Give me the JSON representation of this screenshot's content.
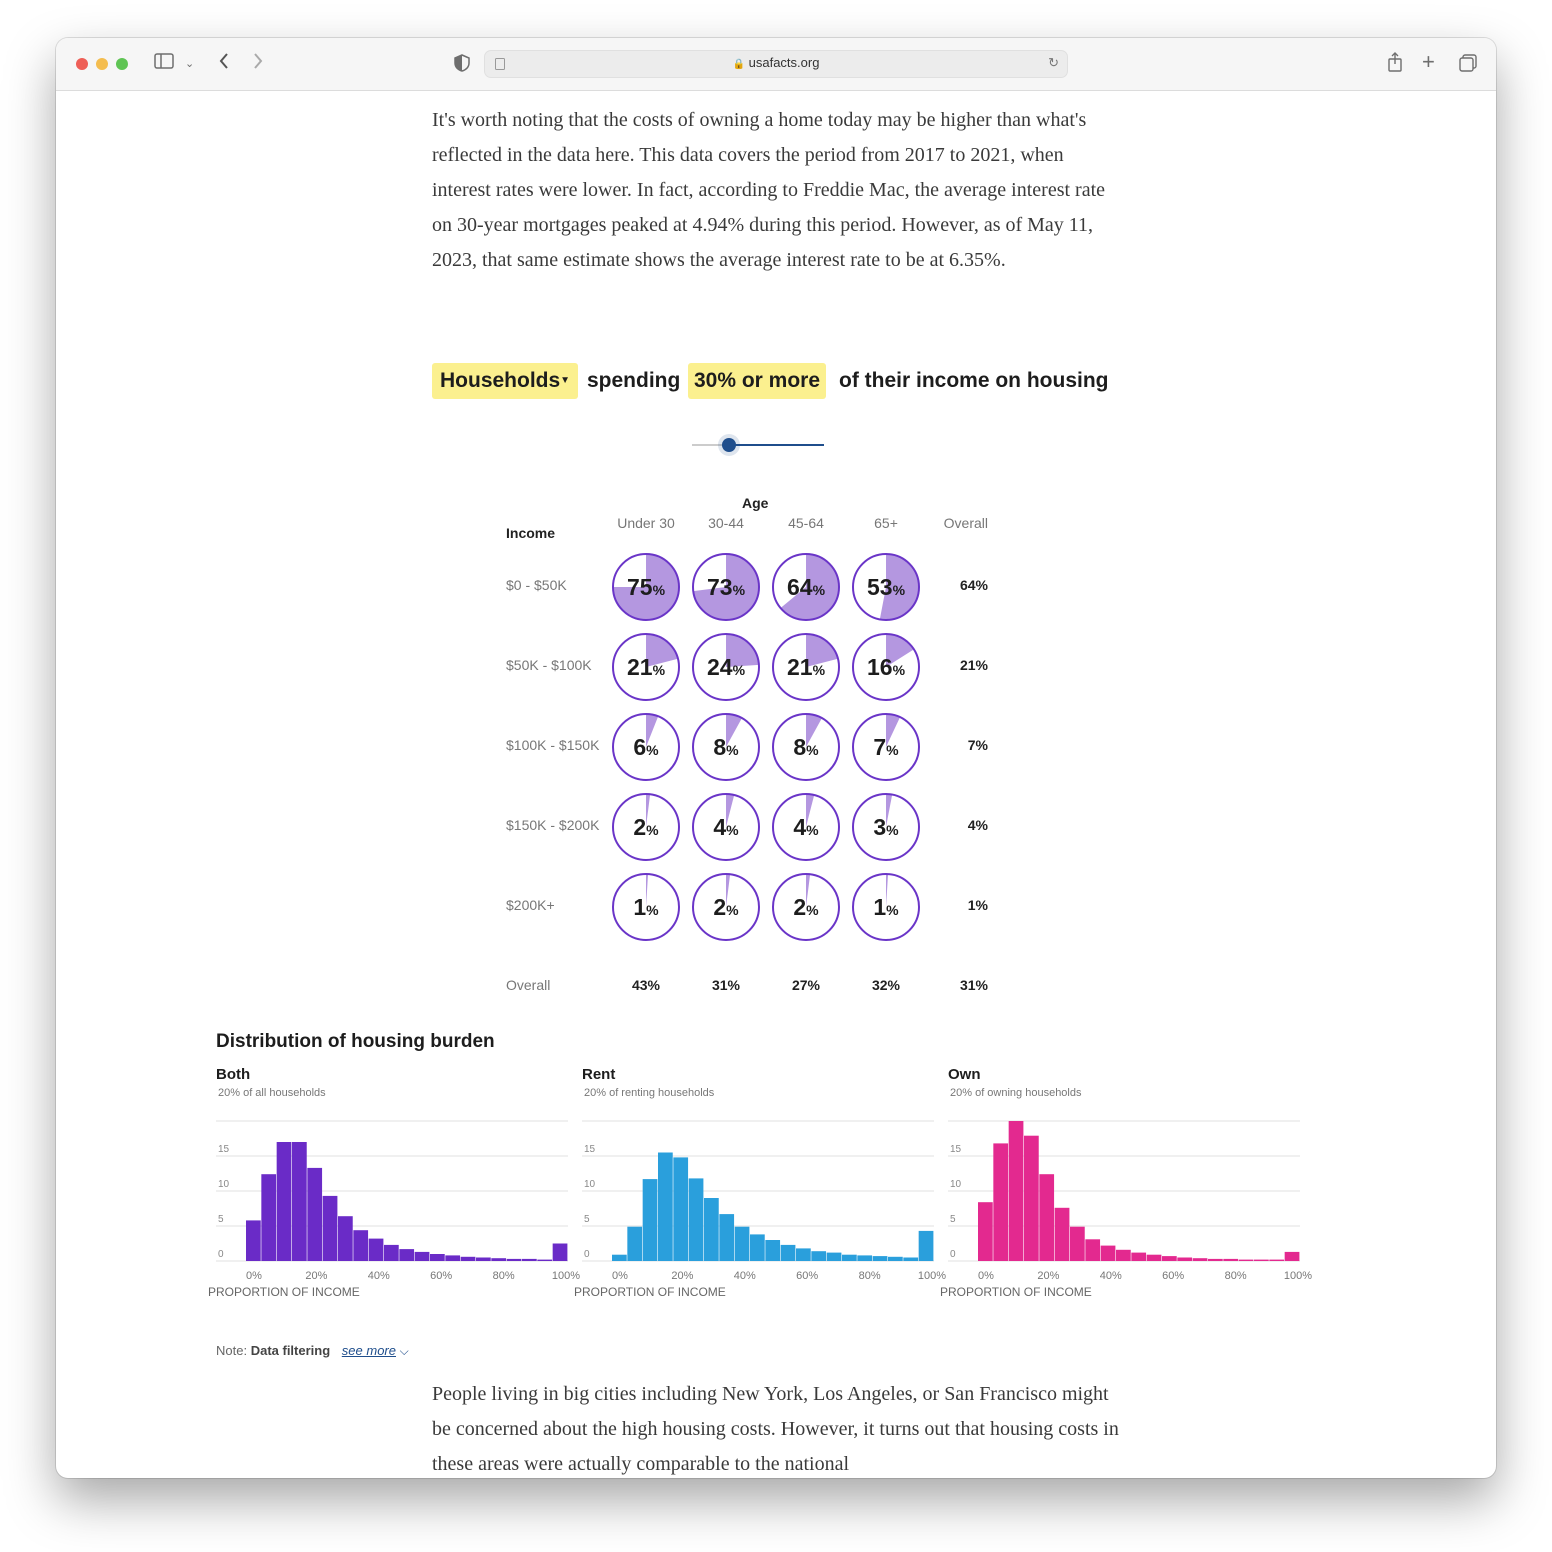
{
  "browser": {
    "url": "usafacts.org",
    "colors": {
      "close": "#ee5f57",
      "minimize": "#f4bd4f",
      "zoom": "#5fc454"
    }
  },
  "article": {
    "para1": "It's worth noting that the costs of owning a home today may be higher than what's reflected in the data here. This data covers the period from 2017 to 2021, when interest rates were lower. In fact, according to Freddie Mac, the average interest rate on 30-year mortgages peaked at 4.94% during this period. However, as of May 11, 2023, that same estimate shows the average interest rate to be at 6.35%.",
    "para2": "People living in big cities including New York, Los Angeles, or San Francisco might be concerned about the high housing costs. However, it turns out that housing costs in these areas were actually comparable to the national"
  },
  "filter": {
    "subject": "Households",
    "word1": "spending",
    "threshold": "30% or more",
    "word2": "of their income on housing",
    "slider_value_fraction": 0.28
  },
  "grid": {
    "age_label": "Age",
    "income_label": "Income",
    "columns": [
      "Under 30",
      "30-44",
      "45-64",
      "65+",
      "Overall"
    ],
    "rows": [
      {
        "label": "$0 - $50K",
        "values": [
          75,
          73,
          64,
          53
        ],
        "overall": "64%"
      },
      {
        "label": "$50K - $100K",
        "values": [
          21,
          24,
          21,
          16
        ],
        "overall": "21%"
      },
      {
        "label": "$100K - $150K",
        "values": [
          6,
          8,
          8,
          7
        ],
        "overall": "7%"
      },
      {
        "label": "$150K - $200K",
        "values": [
          2,
          4,
          4,
          3
        ],
        "overall": "4%"
      },
      {
        "label": "$200K+",
        "values": [
          1,
          2,
          2,
          1
        ],
        "overall": "1%"
      }
    ],
    "overall_row": {
      "label": "Overall",
      "values": [
        "43%",
        "31%",
        "27%",
        "32%",
        "31%"
      ]
    },
    "pie_color": "#b497e0",
    "ring_color": "#6a35c8"
  },
  "histograms": {
    "title": "Distribution of housing burden",
    "xlabel": "PROPORTION OF INCOME",
    "x_ticks": [
      "0%",
      "20%",
      "40%",
      "60%",
      "80%",
      "100%"
    ],
    "y_ticks": [
      "0",
      "5",
      "10",
      "15"
    ]
  },
  "note": {
    "prefix": "Note:",
    "title": "Data filtering",
    "link": "see more"
  },
  "chart_data": [
    {
      "type": "bar",
      "title": "Both",
      "subtitle": "20% of all households",
      "color": "#6a2bc7",
      "ylim": [
        0,
        20
      ],
      "values": [
        5.8,
        12.4,
        17.0,
        17.0,
        13.3,
        9.3,
        6.4,
        4.4,
        3.2,
        2.3,
        1.7,
        1.3,
        1.0,
        0.8,
        0.6,
        0.5,
        0.4,
        0.3,
        0.3,
        0.2,
        2.5
      ]
    },
    {
      "type": "bar",
      "title": "Rent",
      "subtitle": "20% of renting households",
      "color": "#2a9fdc",
      "ylim": [
        0,
        20
      ],
      "values": [
        0.9,
        4.9,
        11.7,
        15.5,
        14.8,
        11.8,
        9.0,
        6.7,
        4.9,
        3.8,
        3.0,
        2.3,
        1.8,
        1.4,
        1.2,
        0.9,
        0.8,
        0.7,
        0.6,
        0.5,
        4.3
      ]
    },
    {
      "type": "bar",
      "title": "Own",
      "subtitle": "20% of owning households",
      "color": "#e3298f",
      "ylim": [
        0,
        20
      ],
      "values": [
        8.4,
        16.8,
        20.0,
        17.9,
        12.4,
        7.6,
        4.9,
        3.1,
        2.2,
        1.6,
        1.2,
        0.9,
        0.7,
        0.5,
        0.4,
        0.3,
        0.3,
        0.2,
        0.2,
        0.2,
        1.3
      ]
    }
  ]
}
